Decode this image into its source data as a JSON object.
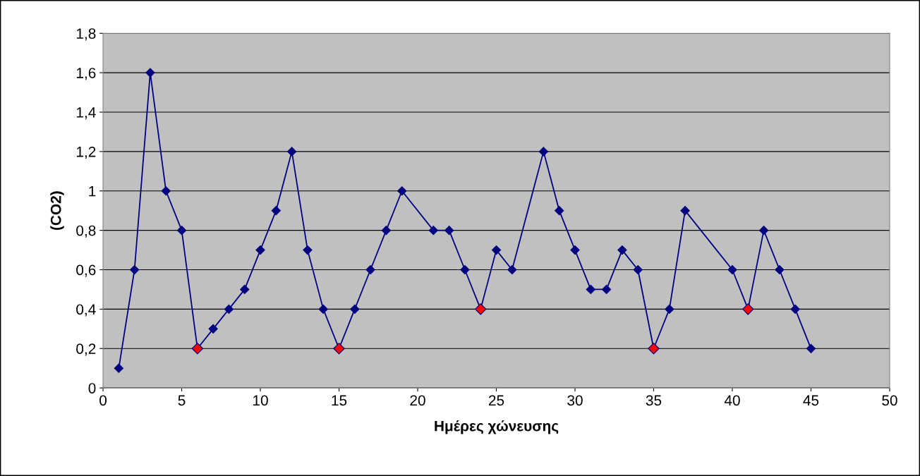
{
  "chart_data": {
    "type": "line",
    "xlabel": "Ημέρες χώνευσης",
    "ylabel": "(CO2)",
    "series": [
      {
        "color": "#000080",
        "marker": "diamond",
        "line_style": "solid",
        "x": [
          1,
          2,
          3,
          4,
          5,
          6,
          7,
          8,
          9,
          10,
          11,
          12,
          13,
          14,
          15,
          16,
          17,
          18,
          19,
          21,
          22,
          23,
          24,
          25,
          26,
          28,
          29,
          30,
          31,
          32,
          33,
          34,
          35,
          36,
          37,
          40,
          41,
          42,
          43,
          44,
          45
        ],
        "values": [
          0.1,
          0.6,
          1.6,
          1.0,
          0.8,
          0.2,
          0.3,
          0.4,
          0.5,
          0.7,
          0.9,
          1.2,
          0.7,
          0.4,
          0.2,
          0.4,
          0.6,
          0.8,
          1.0,
          0.8,
          0.8,
          0.6,
          0.4,
          0.7,
          0.6,
          1.2,
          0.9,
          0.7,
          0.5,
          0.5,
          0.7,
          0.6,
          0.2,
          0.4,
          0.9,
          0.6,
          0.4,
          0.8,
          0.6,
          0.4,
          0.2
        ]
      },
      {
        "type": "scatter",
        "color": "#ff0000",
        "marker": "diamond",
        "x": [
          6,
          15,
          24,
          35,
          41
        ],
        "values": [
          0.2,
          0.2,
          0.4,
          0.2,
          0.4
        ]
      }
    ],
    "xlim": [
      0,
      50
    ],
    "xticks": [
      0,
      5,
      10,
      15,
      20,
      25,
      30,
      35,
      40,
      45,
      50
    ],
    "ylim": [
      0,
      1.8
    ],
    "yticks": [
      0,
      {
        "value": 0.2,
        "label": "0,2"
      },
      {
        "value": 0.4,
        "label": "0,4"
      },
      {
        "value": 0.6,
        "label": "0,6"
      },
      {
        "value": 0.8,
        "label": "0,8"
      },
      1,
      {
        "value": 1.2,
        "label": "1,2"
      },
      {
        "value": 1.4,
        "label": "1,4"
      },
      {
        "value": 1.6,
        "label": "1,6"
      },
      {
        "value": 1.8,
        "label": "1,8"
      }
    ],
    "grid": "y"
  }
}
